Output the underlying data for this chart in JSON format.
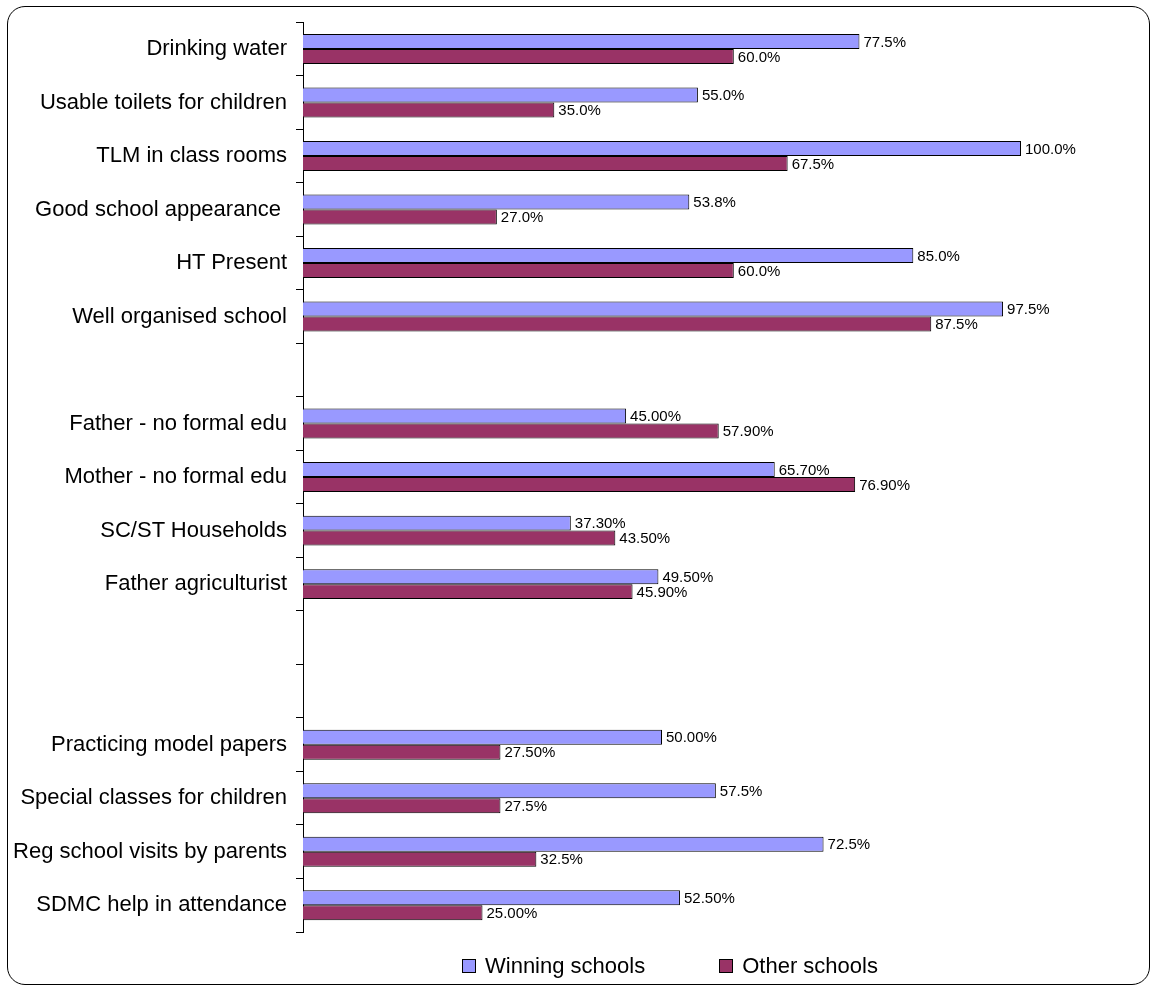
{
  "chart_data": {
    "type": "bar",
    "orientation": "horizontal",
    "categories": [
      "Drinking water",
      "Usable toilets for children",
      "TLM in class rooms",
      "Good school appearance ",
      "HT Present",
      "Well organised school",
      null,
      "Father - no formal edu",
      "Mother - no formal edu",
      "SC/ST Households",
      "Father agriculturist",
      null,
      null,
      "Practicing model papers",
      "Special classes for children",
      "Reg school visits by parents",
      "SDMC help in attendance"
    ],
    "series": [
      {
        "name": "Winning schools",
        "color": "#9999ff",
        "values": [
          77.5,
          55,
          100,
          53.8,
          85,
          97.5,
          null,
          45,
          65.7,
          37.3,
          49.5,
          null,
          null,
          50,
          57.5,
          72.5,
          52.5
        ],
        "value_labels": [
          "77.5%",
          "55.0%",
          "100.0%",
          "53.8%",
          "85.0%",
          "97.5%",
          null,
          "45.00%",
          "65.70%",
          "37.30%",
          "49.50%",
          null,
          null,
          "50.00%",
          "57.5%",
          "72.5%",
          "52.50%"
        ]
      },
      {
        "name": "Other schools",
        "color": "#993366",
        "values": [
          60,
          35,
          67.5,
          27,
          60,
          87.5,
          null,
          57.9,
          76.9,
          43.5,
          45.9,
          null,
          null,
          27.5,
          27.5,
          32.5,
          25
        ],
        "value_labels": [
          "60.0%",
          "35.0%",
          "67.5%",
          "27.0%",
          "60.0%",
          "87.5%",
          null,
          "57.90%",
          "76.90%",
          "43.50%",
          "45.90%",
          null,
          null,
          "27.50%",
          "27.5%",
          "32.5%",
          "25.00%"
        ]
      }
    ],
    "legend": "bottom",
    "tick_labels": "y"
  }
}
